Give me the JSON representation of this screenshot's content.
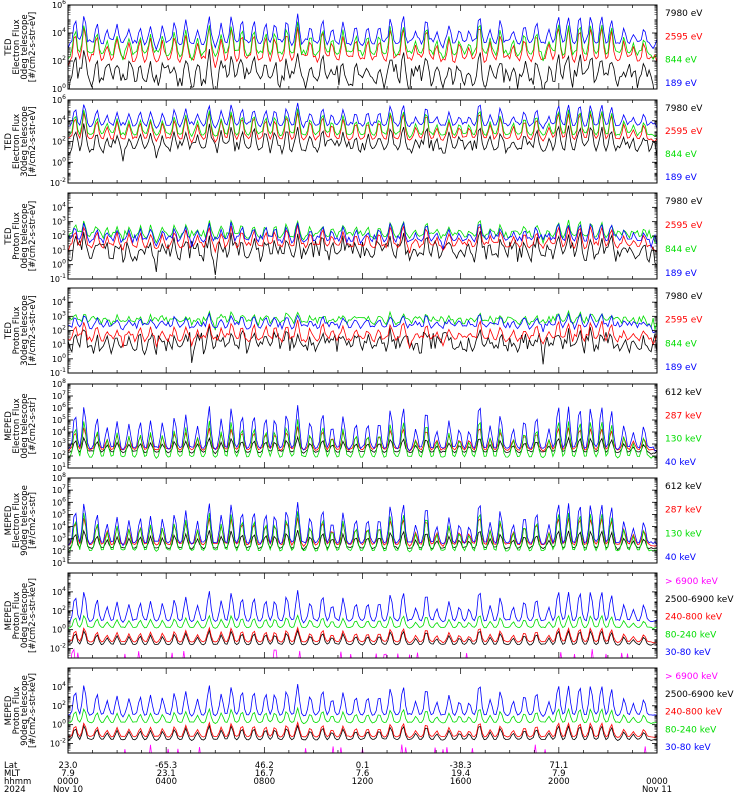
{
  "chart_data": [
    {
      "type": "line",
      "ylabel_lines": [
        "TED",
        "Electron Flux",
        "0deg telescope",
        "[#/cm2-s-str-eV]"
      ],
      "yticks": [
        "10^0",
        "10^2",
        "10^4",
        "10^6"
      ],
      "ylim": [
        1,
        1000000
      ],
      "series": [
        {
          "name": "7980 eV",
          "color": "#000000"
        },
        {
          "name": "2595 eV",
          "color": "#ff0000"
        },
        {
          "name": "844 eV",
          "color": "#00dd00"
        },
        {
          "name": "189 eV",
          "color": "#0000ff"
        }
      ],
      "baselines": [
        0.4,
        2,
        2.4,
        3.2
      ],
      "peaks": [
        2.2,
        2.6,
        2.4,
        2.2
      ],
      "noise": [
        1.4,
        0.5,
        0.4,
        0.4
      ]
    },
    {
      "type": "line",
      "ylabel_lines": [
        "TED",
        "Electron Flux",
        "30deg telescope",
        "[#/cm2-s-str-eV]"
      ],
      "yticks": [
        "10^-2",
        "10^0",
        "10^2",
        "10^4",
        "10^6"
      ],
      "ylim": [
        0.01,
        1000000
      ],
      "series": [
        {
          "name": "7980 eV",
          "color": "#000000"
        },
        {
          "name": "2595 eV",
          "color": "#ff0000"
        },
        {
          "name": "844 eV",
          "color": "#00dd00"
        },
        {
          "name": "189 eV",
          "color": "#0000ff"
        }
      ],
      "baselines": [
        1.1,
        2.2,
        2.6,
        3.5
      ],
      "peaks": [
        2.6,
        2.8,
        2.6,
        2.2
      ],
      "noise": [
        1.1,
        0.3,
        0.3,
        0.4
      ]
    },
    {
      "type": "line",
      "ylabel_lines": [
        "TED",
        "Proton Flux",
        "0deg telescope",
        "[#/cm2-s-str-eV]"
      ],
      "yticks": [
        "10^-1",
        "10^0",
        "10^1",
        "10^2",
        "10^3",
        "10^4"
      ],
      "ylim": [
        0.1,
        100000
      ],
      "series": [
        {
          "name": "7980 eV",
          "color": "#000000"
        },
        {
          "name": "2595 eV",
          "color": "#ff0000"
        },
        {
          "name": "844 eV",
          "color": "#00dd00"
        },
        {
          "name": "189 eV",
          "color": "#0000ff"
        }
      ],
      "baselines": [
        0.4,
        1.2,
        1.9,
        1.6
      ],
      "peaks": [
        1.8,
        1.6,
        1.2,
        1.4
      ],
      "noise": [
        1.3,
        0.4,
        0.5,
        0.5
      ]
    },
    {
      "type": "line",
      "ylabel_lines": [
        "TED",
        "Proton Flux",
        "30deg telescope",
        "[#/cm2-s-str-eV]"
      ],
      "yticks": [
        "10^-1",
        "10^0",
        "10^1",
        "10^2",
        "10^3",
        "10^4"
      ],
      "ylim": [
        0.1,
        100000
      ],
      "series": [
        {
          "name": "7980 eV",
          "color": "#000000"
        },
        {
          "name": "2595 eV",
          "color": "#ff0000"
        },
        {
          "name": "844 eV",
          "color": "#00dd00"
        },
        {
          "name": "189 eV",
          "color": "#0000ff"
        }
      ],
      "baselines": [
        0.6,
        1.3,
        2.5,
        2.2
      ],
      "peaks": [
        1.5,
        1.4,
        0.8,
        1.0
      ],
      "noise": [
        1.3,
        0.5,
        0.5,
        0.4
      ]
    },
    {
      "type": "line",
      "ylabel_lines": [
        "MEPED",
        "Electron Flux",
        "0deg telescope",
        "[#/cm2-s-str]"
      ],
      "yticks": [
        "10^1",
        "10^2",
        "10^3",
        "10^4",
        "10^5",
        "10^6",
        "10^7",
        "10^8"
      ],
      "ylim": [
        10,
        100000000
      ],
      "series": [
        {
          "name": "612 keV",
          "color": "#000000"
        },
        {
          "name": "287 keV",
          "color": "#ff0000"
        },
        {
          "name": "130 keV",
          "color": "#00dd00"
        },
        {
          "name": "40 keV",
          "color": "#0000ff"
        }
      ],
      "baselines": [
        2.3,
        2.5,
        1.9,
        2.6
      ],
      "peaks": [
        1.3,
        2.0,
        3.3,
        3.8
      ],
      "noise": [
        0.15,
        0.15,
        0.1,
        0.2
      ]
    },
    {
      "type": "line",
      "ylabel_lines": [
        "MEPED",
        "Electron Flux",
        "90deg telescope",
        "[#/cm2-s-str]"
      ],
      "yticks": [
        "10^1",
        "10^2",
        "10^3",
        "10^4",
        "10^5",
        "10^6",
        "10^7",
        "10^8"
      ],
      "ylim": [
        10,
        100000000
      ],
      "series": [
        {
          "name": "612 keV",
          "color": "#000000"
        },
        {
          "name": "287 keV",
          "color": "#ff0000"
        },
        {
          "name": "130 keV",
          "color": "#00dd00"
        },
        {
          "name": "40 keV",
          "color": "#0000ff"
        }
      ],
      "baselines": [
        2.2,
        2.5,
        2.0,
        2.6
      ],
      "peaks": [
        1.6,
        2.4,
        3.4,
        3.6
      ],
      "noise": [
        0.15,
        0.15,
        0.1,
        0.2
      ]
    },
    {
      "type": "line",
      "ylabel_lines": [
        "MEPED",
        "Proton Flux",
        "0deg telescope",
        "[#/cm2-s-str-keV]"
      ],
      "yticks": [
        "10^-2",
        "10^0",
        "10^2",
        "10^4"
      ],
      "ylim": [
        0.001,
        1000000
      ],
      "series": [
        {
          "name": "> 6900 keV",
          "color": "#ff00ff"
        },
        {
          "name": "2500-6900 keV",
          "color": "#000000"
        },
        {
          "name": "240-800 keV",
          "color": "#ff0000"
        },
        {
          "name": "80-240 keV",
          "color": "#00dd00"
        },
        {
          "name": "30-80 keV",
          "color": "#0000ff"
        }
      ],
      "baselines": [
        -2.6,
        -1.6,
        -1.3,
        0.2,
        0.9
      ],
      "peaks": [
        0.8,
        1.6,
        1.6,
        1.4,
        3.4
      ],
      "noise": [
        0.15,
        0.1,
        0.1,
        0.1,
        0.2
      ]
    },
    {
      "type": "line",
      "ylabel_lines": [
        "MEPED",
        "Proton Flux",
        "90deg telescope",
        "[#/cm2-s-str-keV]"
      ],
      "yticks": [
        "10^-2",
        "10^0",
        "10^2",
        "10^4"
      ],
      "ylim": [
        0.001,
        1000000
      ],
      "series": [
        {
          "name": "> 6900 keV",
          "color": "#ff00ff"
        },
        {
          "name": "2500-6900 keV",
          "color": "#000000"
        },
        {
          "name": "240-800 keV",
          "color": "#ff0000"
        },
        {
          "name": "80-240 keV",
          "color": "#00dd00"
        },
        {
          "name": "30-80 keV",
          "color": "#0000ff"
        }
      ],
      "baselines": [
        -2.6,
        -1.6,
        -1.3,
        0.2,
        1.0
      ],
      "peaks": [
        0.8,
        1.6,
        1.6,
        1.6,
        3.4
      ],
      "noise": [
        0.15,
        0.1,
        0.1,
        0.1,
        0.2
      ]
    }
  ],
  "footer": {
    "row_labels": [
      "Lat",
      "MLT",
      "hhmm",
      "2024"
    ],
    "columns": [
      {
        "lat": "23.0",
        "mlt": "7.9",
        "hhmm": "0000",
        "date": "Nov 10"
      },
      {
        "lat": "-65.3",
        "mlt": "23.1",
        "hhmm": "0400",
        "date": ""
      },
      {
        "lat": "46.2",
        "mlt": "16.7",
        "hhmm": "0800",
        "date": ""
      },
      {
        "lat": "0.1",
        "mlt": "7.6",
        "hhmm": "1200",
        "date": ""
      },
      {
        "lat": "-38.3",
        "mlt": "19.4",
        "hhmm": "1600",
        "date": ""
      },
      {
        "lat": "71.1",
        "mlt": "7.9",
        "hhmm": "2000",
        "date": ""
      },
      {
        "lat": "",
        "mlt": "",
        "hhmm": "0000",
        "date": "Nov 11"
      }
    ]
  }
}
